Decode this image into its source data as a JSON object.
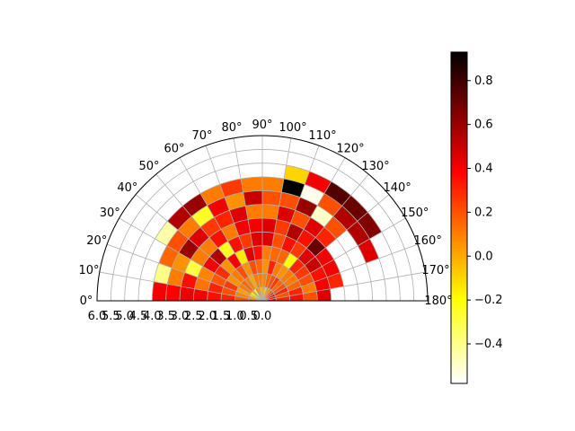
{
  "chart_data": {
    "type": "heatmap",
    "projection": "polar-half",
    "grid": true,
    "theta_ticks": [
      "0°",
      "10°",
      "20°",
      "30°",
      "40°",
      "50°",
      "60°",
      "70°",
      "80°",
      "90°",
      "100°",
      "110°",
      "120°",
      "130°",
      "140°",
      "150°",
      "160°",
      "170°",
      "180°"
    ],
    "r_ticks": [
      "6.0",
      "5.5",
      "5.0",
      "4.5",
      "4.0",
      "3.5",
      "3.0",
      "2.5",
      "2.0",
      "1.5",
      "1.0",
      "0.5",
      "0.0"
    ],
    "r_range": [
      0,
      6
    ],
    "theta_range_deg": [
      0,
      180
    ],
    "theta_bin_deg": 10,
    "r_edges": [
      0,
      0.5,
      1.0,
      1.5,
      2.0,
      2.5,
      3.0,
      3.5,
      4.0,
      4.5,
      5.0,
      5.5,
      6.0
    ],
    "colormap": "hot_r",
    "colorbar": {
      "vmin": -0.58,
      "vmax": 0.93,
      "ticks": [
        "−0.4",
        "−0.2",
        "0.0",
        "0.2",
        "0.4",
        "0.6",
        "0.8"
      ],
      "tick_values": [
        -0.4,
        -0.2,
        0.0,
        0.2,
        0.4,
        0.6,
        0.8
      ]
    },
    "values": [
      [
        0.15,
        0.18,
        0.3,
        0.35,
        0.4,
        0.42,
        0.38,
        0.4,
        null,
        null,
        null,
        null
      ],
      [
        0.05,
        0.08,
        0.2,
        0.3,
        0.12,
        0.35,
        0.1,
        -0.4,
        null,
        null,
        null,
        null
      ],
      [
        -0.1,
        0.02,
        0.25,
        0.18,
        0.08,
        -0.3,
        0.05,
        0.15,
        null,
        null,
        null,
        null
      ],
      [
        -0.2,
        0.1,
        0.05,
        0.28,
        0.4,
        0.1,
        0.6,
        0.2,
        -0.45,
        null,
        null,
        null
      ],
      [
        0.0,
        0.15,
        0.1,
        0.05,
        0.55,
        0.1,
        0.45,
        0.1,
        0.55,
        null,
        null,
        null
      ],
      [
        -0.3,
        0.1,
        0.2,
        0.4,
        -0.25,
        0.35,
        0.25,
        -0.25,
        0.6,
        null,
        null,
        null
      ],
      [
        0.1,
        0.0,
        0.05,
        -0.15,
        0.35,
        0.1,
        0.3,
        0.4,
        0.1,
        null,
        null,
        null
      ],
      [
        0.05,
        0.1,
        0.2,
        0.45,
        0.25,
        0.4,
        0.45,
        0.05,
        0.25,
        null,
        null,
        null
      ],
      [
        -0.05,
        0.1,
        0.15,
        0.35,
        0.45,
        0.4,
        0.1,
        0.5,
        0.1,
        null,
        null,
        null
      ],
      [
        0.0,
        0.08,
        0.05,
        0.1,
        0.45,
        0.45,
        0.1,
        0.2,
        0.1,
        null,
        null,
        null
      ],
      [
        -0.1,
        0.15,
        0.3,
        0.15,
        0.2,
        0.25,
        0.45,
        0.2,
        0.93,
        -0.1,
        null,
        null
      ],
      [
        0.05,
        0.2,
        0.1,
        0.15,
        0.35,
        0.55,
        0.2,
        0.6,
        -0.55,
        0.4,
        null,
        null
      ],
      [
        0.1,
        0.25,
        0.05,
        -0.2,
        0.25,
        0.35,
        0.45,
        -0.5,
        0.2,
        0.75,
        null,
        null
      ],
      [
        0.2,
        0.15,
        0.1,
        0.3,
        0.45,
        0.7,
        0.3,
        0.2,
        0.55,
        0.7,
        null,
        null
      ],
      [
        0.3,
        0.2,
        0.1,
        0.25,
        0.5,
        0.4,
        null,
        null,
        0.55,
        0.65,
        null,
        null
      ],
      [
        0.4,
        0.3,
        0.15,
        0.2,
        0.35,
        0.4,
        null,
        null,
        0.45,
        null,
        null,
        null
      ],
      [
        0.35,
        0.2,
        0.3,
        0.1,
        0.4,
        0.3,
        null,
        null,
        null,
        null,
        null,
        null
      ],
      [
        0.4,
        0.3,
        0.35,
        0.2,
        0.45,
        null,
        null,
        null,
        null,
        null,
        null,
        null
      ],
      [
        null,
        null,
        null,
        null,
        null,
        null,
        null,
        null,
        null,
        null,
        null,
        null
      ]
    ]
  }
}
